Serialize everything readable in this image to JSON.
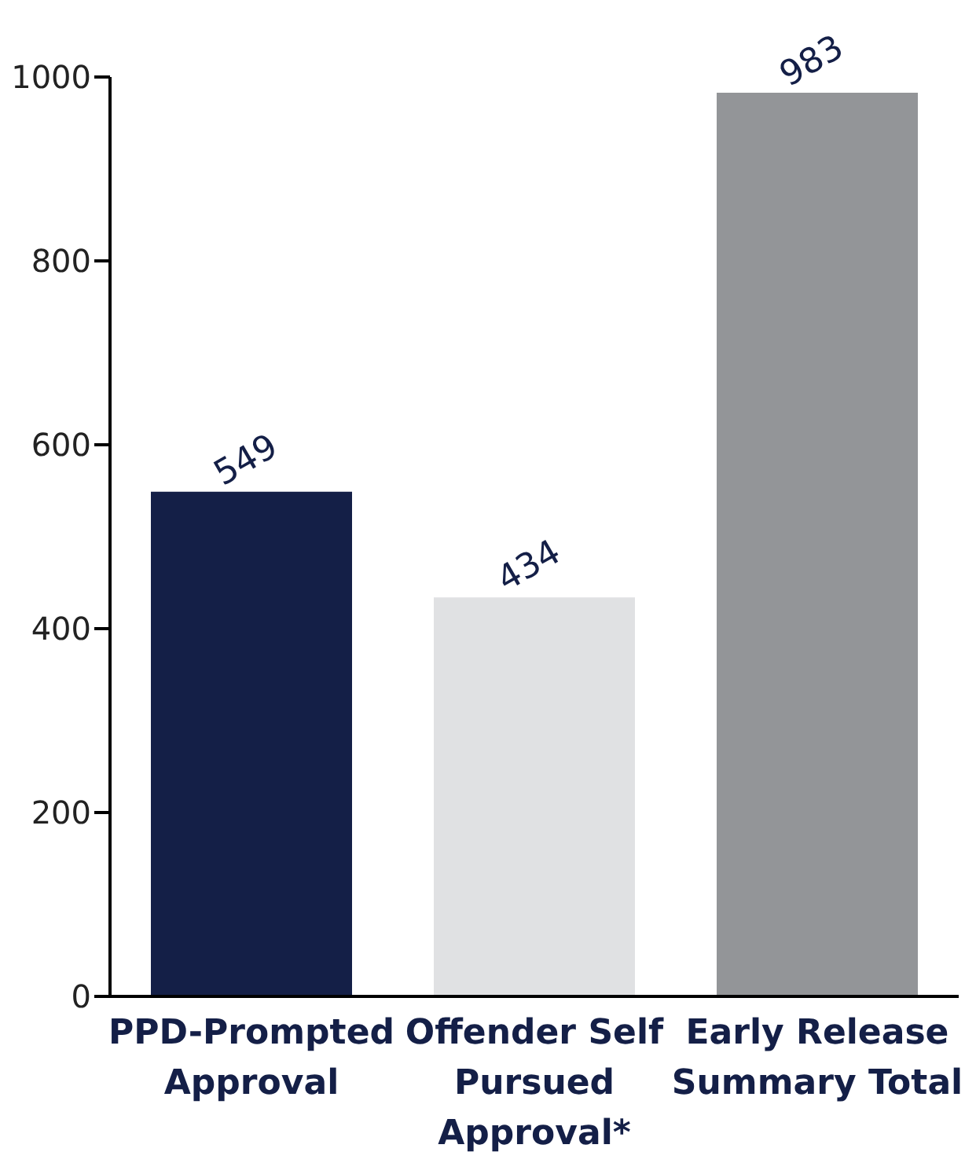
{
  "chart_data": {
    "type": "bar",
    "categories": [
      "PPD-Prompted Approval",
      "Offender Self Pursued Approval*",
      "Early Release Summary Total"
    ],
    "values": [
      549,
      434,
      983
    ],
    "colors": [
      "#141f47",
      "#e0e1e3",
      "#939598"
    ],
    "ylim": [
      0,
      1000
    ],
    "yticks": [
      0,
      200,
      400,
      600,
      800,
      1000
    ],
    "grid": false,
    "data_labels": true
  }
}
